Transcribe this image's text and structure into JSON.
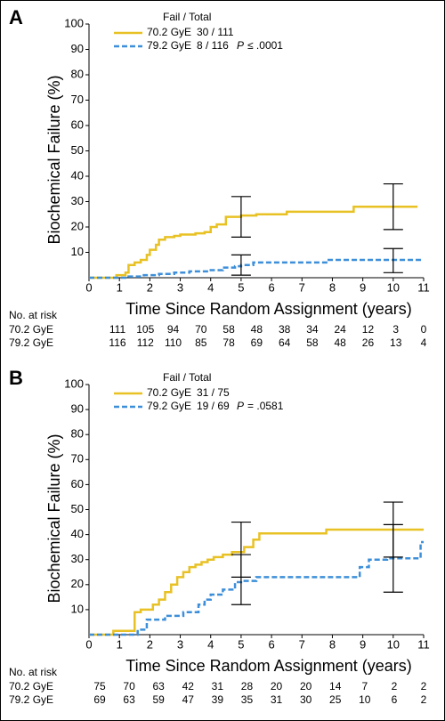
{
  "chart_data": [
    {
      "type": "step",
      "panel": "A",
      "legend_title": "Fail / Total",
      "p_label": "P",
      "p_value": "≤ .0001",
      "xlabel": "Time Since Random Assignment (years)",
      "ylabel": "Biochemical Failure (%)",
      "xlim": [
        0,
        11
      ],
      "xticks": [
        0,
        1,
        2,
        3,
        4,
        5,
        6,
        7,
        8,
        9,
        10,
        11
      ],
      "ylim": [
        0,
        100
      ],
      "yticks": [
        10,
        20,
        30,
        40,
        50,
        60,
        70,
        80,
        90,
        100
      ],
      "series": [
        {
          "name": "70.2 GyE",
          "fail_total": "30 / 111",
          "color": "#e8c124",
          "dashed": false,
          "x": [
            0,
            0.9,
            1.2,
            1.3,
            1.5,
            1.7,
            1.9,
            2.0,
            2.2,
            2.3,
            2.5,
            2.8,
            3.0,
            3.5,
            3.8,
            4.0,
            4.2,
            4.5,
            5.0,
            5.5,
            6.5,
            8.7,
            10,
            10.8
          ],
          "values": [
            0,
            1,
            2,
            5,
            6,
            7,
            9,
            11,
            13,
            15,
            16,
            16.5,
            17,
            17.5,
            18,
            20,
            21,
            24,
            24.5,
            25,
            26,
            28,
            28,
            28
          ],
          "error_bars": [
            {
              "x": 5,
              "lower": 16,
              "upper": 32
            },
            {
              "x": 10,
              "lower": 19,
              "upper": 37
            }
          ]
        },
        {
          "name": "79.2 GyE",
          "fail_total": "8 / 116",
          "color": "#3d8fd9",
          "dashed": true,
          "x": [
            0,
            1.3,
            1.8,
            2.3,
            2.8,
            3.3,
            4.0,
            4.4,
            4.8,
            5.0,
            5.4,
            7.8,
            11
          ],
          "values": [
            0,
            0.5,
            1,
            1.5,
            2,
            2.5,
            3,
            4,
            4.5,
            5,
            6,
            7,
            7
          ],
          "error_bars": [
            {
              "x": 5,
              "lower": 1,
              "upper": 9
            },
            {
              "x": 10,
              "lower": 2,
              "upper": 11.5
            }
          ]
        }
      ],
      "at_risk": {
        "title": "No. at risk",
        "rows": [
          {
            "label": "70.2 GyE",
            "values": [
              111,
              105,
              94,
              70,
              58,
              48,
              38,
              34,
              24,
              12,
              3,
              0
            ]
          },
          {
            "label": "79.2 GyE",
            "values": [
              116,
              112,
              110,
              85,
              78,
              69,
              64,
              58,
              48,
              26,
              13,
              4
            ]
          }
        ]
      }
    },
    {
      "type": "step",
      "panel": "B",
      "legend_title": "Fail / Total",
      "p_label": "P",
      "p_value": "= .0581",
      "xlabel": "Time Since Random Assignment (years)",
      "ylabel": "Biochemical Failure (%)",
      "xlim": [
        0,
        11
      ],
      "xticks": [
        0,
        1,
        2,
        3,
        4,
        5,
        6,
        7,
        8,
        9,
        10,
        11
      ],
      "ylim": [
        0,
        100
      ],
      "yticks": [
        10,
        20,
        30,
        40,
        50,
        60,
        70,
        80,
        90,
        100
      ],
      "series": [
        {
          "name": "70.2 GyE",
          "fail_total": "31 / 75",
          "color": "#e8c124",
          "dashed": false,
          "x": [
            0,
            0.8,
            1.5,
            1.7,
            2.1,
            2.3,
            2.5,
            2.7,
            2.9,
            3.1,
            3.3,
            3.5,
            3.7,
            3.9,
            4.1,
            4.4,
            4.7,
            5.1,
            5.4,
            5.6,
            7.8,
            11
          ],
          "values": [
            0,
            1.5,
            9,
            10,
            12,
            14,
            17,
            20,
            23,
            25,
            27,
            28,
            29,
            30,
            31,
            32,
            33,
            35,
            38,
            40.5,
            42,
            42
          ],
          "error_bars": [
            {
              "x": 5,
              "lower": 23,
              "upper": 45
            },
            {
              "x": 10,
              "lower": 31,
              "upper": 53
            }
          ]
        },
        {
          "name": "79.2 GyE",
          "fail_total": "19 / 69",
          "color": "#3d8fd9",
          "dashed": true,
          "x": [
            0,
            1.6,
            1.9,
            2.5,
            3.1,
            3.6,
            3.8,
            4.0,
            4.4,
            4.8,
            5.0,
            5.5,
            8.7,
            8.9,
            9.2,
            9.8,
            10.9,
            11
          ],
          "values": [
            0,
            2,
            6,
            7.5,
            9,
            12,
            14,
            16,
            18,
            21,
            21.5,
            23,
            23,
            27,
            30,
            30.5,
            37,
            37
          ],
          "error_bars": [
            {
              "x": 5,
              "lower": 12,
              "upper": 32
            },
            {
              "x": 10,
              "lower": 17,
              "upper": 44
            }
          ]
        }
      ],
      "at_risk": {
        "title": "No. at risk",
        "rows": [
          {
            "label": "70.2 GyE",
            "values": [
              75,
              70,
              63,
              42,
              31,
              28,
              20,
              20,
              14,
              7,
              2,
              2
            ]
          },
          {
            "label": "79.2 GyE",
            "values": [
              69,
              63,
              59,
              47,
              39,
              35,
              31,
              30,
              25,
              10,
              6,
              2
            ]
          }
        ]
      }
    }
  ]
}
